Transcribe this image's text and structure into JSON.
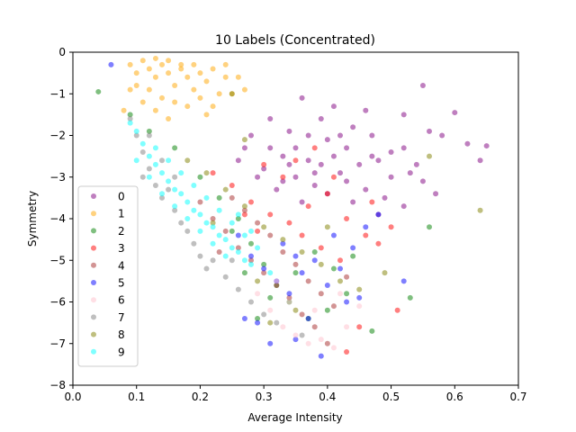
{
  "chart_data": {
    "type": "scatter",
    "title": "10 Labels (Concentrated)",
    "xlabel": "Average Intensity",
    "ylabel": "Symmetry",
    "xlim": [
      0.0,
      0.7
    ],
    "ylim": [
      -8,
      0
    ],
    "xticks": [
      0.0,
      0.1,
      0.2,
      0.3,
      0.4,
      0.5,
      0.6,
      0.7
    ],
    "xtick_labels": [
      "0.0",
      "0.1",
      "0.2",
      "0.3",
      "0.4",
      "0.5",
      "0.6",
      "0.7"
    ],
    "yticks": [
      0,
      -1,
      -2,
      -3,
      -4,
      -5,
      -6,
      -7,
      -8
    ],
    "ytick_labels": [
      "0",
      "−1",
      "−2",
      "−3",
      "−4",
      "−5",
      "−6",
      "−7",
      "−8"
    ],
    "grid": false,
    "legend_position": "lower-left",
    "series": [
      {
        "name": "0",
        "color": "#800080",
        "points": [
          [
            0.36,
            -1.1
          ],
          [
            0.41,
            -1.3
          ],
          [
            0.46,
            -1.4
          ],
          [
            0.52,
            -1.5
          ],
          [
            0.55,
            -0.8
          ],
          [
            0.62,
            -2.2
          ],
          [
            0.65,
            -2.25
          ],
          [
            0.6,
            -1.45
          ],
          [
            0.56,
            -1.9
          ],
          [
            0.52,
            -2.3
          ],
          [
            0.48,
            -2.6
          ],
          [
            0.44,
            -1.8
          ],
          [
            0.4,
            -2.1
          ],
          [
            0.37,
            -2.6
          ],
          [
            0.34,
            -1.9
          ],
          [
            0.31,
            -2.3
          ],
          [
            0.28,
            -2.0
          ],
          [
            0.3,
            -2.8
          ],
          [
            0.33,
            -3.1
          ],
          [
            0.38,
            -3.2
          ],
          [
            0.42,
            -2.9
          ],
          [
            0.46,
            -3.3
          ],
          [
            0.5,
            -3.0
          ],
          [
            0.54,
            -2.7
          ],
          [
            0.57,
            -3.4
          ],
          [
            0.52,
            -3.7
          ],
          [
            0.48,
            -3.9
          ],
          [
            0.44,
            -3.6
          ],
          [
            0.4,
            -3.4
          ],
          [
            0.36,
            -3.6
          ],
          [
            0.32,
            -3.3
          ],
          [
            0.29,
            -3.0
          ],
          [
            0.26,
            -2.6
          ],
          [
            0.35,
            -2.3
          ],
          [
            0.39,
            -1.6
          ],
          [
            0.43,
            -2.3
          ],
          [
            0.47,
            -2.0
          ],
          [
            0.5,
            -2.4
          ],
          [
            0.45,
            -2.7
          ],
          [
            0.41,
            -2.5
          ],
          [
            0.37,
            -2.0
          ],
          [
            0.34,
            -2.7
          ],
          [
            0.31,
            -1.6
          ],
          [
            0.27,
            -2.3
          ],
          [
            0.58,
            -2.0
          ],
          [
            0.53,
            -2.9
          ],
          [
            0.49,
            -3.5
          ],
          [
            0.43,
            -3.1
          ],
          [
            0.39,
            -2.7
          ],
          [
            0.35,
            -3.0
          ],
          [
            0.64,
            -2.6
          ],
          [
            0.55,
            -3.1
          ],
          [
            0.47,
            -2.5
          ],
          [
            0.42,
            -2.0
          ],
          [
            0.38,
            -2.9
          ],
          [
            0.33,
            -2.5
          ]
        ]
      },
      {
        "name": "1",
        "color": "#ffa500",
        "points": [
          [
            0.09,
            -0.3
          ],
          [
            0.1,
            -0.5
          ],
          [
            0.11,
            -0.2
          ],
          [
            0.12,
            -0.4
          ],
          [
            0.13,
            -0.6
          ],
          [
            0.14,
            -0.3
          ],
          [
            0.15,
            -0.5
          ],
          [
            0.16,
            -0.8
          ],
          [
            0.17,
            -0.4
          ],
          [
            0.18,
            -0.6
          ],
          [
            0.19,
            -0.9
          ],
          [
            0.2,
            -0.5
          ],
          [
            0.21,
            -0.7
          ],
          [
            0.22,
            -0.4
          ],
          [
            0.23,
            -1.0
          ],
          [
            0.24,
            -0.6
          ],
          [
            0.12,
            -0.9
          ],
          [
            0.14,
            -1.1
          ],
          [
            0.1,
            -0.8
          ],
          [
            0.11,
            -1.2
          ],
          [
            0.13,
            -1.4
          ],
          [
            0.16,
            -1.2
          ],
          [
            0.18,
            -1.3
          ],
          [
            0.2,
            -1.1
          ],
          [
            0.22,
            -1.3
          ],
          [
            0.25,
            -1.0
          ],
          [
            0.27,
            -0.9
          ],
          [
            0.15,
            -0.2
          ],
          [
            0.17,
            -0.3
          ],
          [
            0.19,
            -0.3
          ],
          [
            0.13,
            -0.15
          ],
          [
            0.09,
            -0.9
          ],
          [
            0.08,
            -1.4
          ],
          [
            0.24,
            -0.3
          ],
          [
            0.26,
            -0.6
          ],
          [
            0.21,
            -1.5
          ],
          [
            0.15,
            -1.6
          ]
        ]
      },
      {
        "name": "2",
        "color": "#008000",
        "points": [
          [
            0.04,
            -0.95
          ],
          [
            0.09,
            -1.5
          ],
          [
            0.12,
            -1.9
          ],
          [
            0.16,
            -2.3
          ],
          [
            0.2,
            -3.0
          ],
          [
            0.23,
            -3.5
          ],
          [
            0.26,
            -4.0
          ],
          [
            0.28,
            -4.6
          ],
          [
            0.3,
            -5.1
          ],
          [
            0.32,
            -5.6
          ],
          [
            0.34,
            -6.0
          ],
          [
            0.37,
            -6.4
          ],
          [
            0.4,
            -6.2
          ],
          [
            0.43,
            -5.8
          ],
          [
            0.47,
            -6.7
          ],
          [
            0.53,
            -5.9
          ],
          [
            0.56,
            -4.2
          ],
          [
            0.29,
            -6.4
          ],
          [
            0.35,
            -5.3
          ],
          [
            0.38,
            -4.8
          ],
          [
            0.41,
            -5.2
          ],
          [
            0.31,
            -5.9
          ],
          [
            0.27,
            -5.3
          ],
          [
            0.44,
            -4.9
          ],
          [
            0.25,
            -4.3
          ]
        ]
      },
      {
        "name": "3",
        "color": "#ff0000",
        "points": [
          [
            0.22,
            -2.9
          ],
          [
            0.25,
            -3.2
          ],
          [
            0.28,
            -3.6
          ],
          [
            0.31,
            -3.9
          ],
          [
            0.34,
            -4.1
          ],
          [
            0.37,
            -3.7
          ],
          [
            0.4,
            -3.4
          ],
          [
            0.43,
            -4.0
          ],
          [
            0.46,
            -4.4
          ],
          [
            0.48,
            -4.6
          ],
          [
            0.45,
            -6.6
          ],
          [
            0.43,
            -7.2
          ],
          [
            0.51,
            -6.2
          ],
          [
            0.3,
            -2.7
          ],
          [
            0.33,
            -3.0
          ],
          [
            0.36,
            -4.4
          ],
          [
            0.39,
            -4.7
          ],
          [
            0.42,
            -5.0
          ],
          [
            0.27,
            -3.9
          ],
          [
            0.29,
            -4.3
          ],
          [
            0.35,
            -2.6
          ],
          [
            0.38,
            -2.3
          ],
          [
            0.41,
            -3.0
          ],
          [
            0.47,
            -3.6
          ],
          [
            0.5,
            -4.2
          ]
        ]
      },
      {
        "name": "4",
        "color": "#a52a2a",
        "points": [
          [
            0.2,
            -3.6
          ],
          [
            0.22,
            -4.0
          ],
          [
            0.24,
            -4.3
          ],
          [
            0.26,
            -4.7
          ],
          [
            0.28,
            -5.0
          ],
          [
            0.3,
            -5.3
          ],
          [
            0.32,
            -5.6
          ],
          [
            0.34,
            -5.9
          ],
          [
            0.36,
            -6.3
          ],
          [
            0.38,
            -6.6
          ],
          [
            0.4,
            -7.0
          ],
          [
            0.25,
            -3.5
          ],
          [
            0.27,
            -3.8
          ],
          [
            0.29,
            -4.1
          ],
          [
            0.31,
            -4.4
          ],
          [
            0.33,
            -4.8
          ],
          [
            0.35,
            -5.1
          ],
          [
            0.37,
            -5.5
          ],
          [
            0.39,
            -5.8
          ],
          [
            0.41,
            -6.1
          ],
          [
            0.23,
            -4.8
          ],
          [
            0.43,
            -5.4
          ]
        ]
      },
      {
        "name": "5",
        "color": "#0000ff",
        "points": [
          [
            0.06,
            -0.3
          ],
          [
            0.28,
            -4.9
          ],
          [
            0.3,
            -5.2
          ],
          [
            0.32,
            -5.5
          ],
          [
            0.34,
            -5.8
          ],
          [
            0.36,
            -5.3
          ],
          [
            0.38,
            -5.0
          ],
          [
            0.4,
            -5.6
          ],
          [
            0.42,
            -5.2
          ],
          [
            0.44,
            -4.7
          ],
          [
            0.46,
            -4.2
          ],
          [
            0.48,
            -3.9
          ],
          [
            0.37,
            -6.4
          ],
          [
            0.35,
            -6.9
          ],
          [
            0.31,
            -7.0
          ],
          [
            0.29,
            -6.5
          ],
          [
            0.27,
            -6.4
          ],
          [
            0.39,
            -7.3
          ],
          [
            0.52,
            -5.5
          ],
          [
            0.45,
            -5.9
          ],
          [
            0.33,
            -4.6
          ],
          [
            0.41,
            -4.4
          ],
          [
            0.26,
            -4.4
          ],
          [
            0.35,
            -4.9
          ],
          [
            0.43,
            -6.0
          ]
        ]
      },
      {
        "name": "6",
        "color": "#ffc0cb",
        "points": [
          [
            0.29,
            -5.8
          ],
          [
            0.31,
            -6.2
          ],
          [
            0.33,
            -6.6
          ],
          [
            0.35,
            -6.8
          ],
          [
            0.37,
            -7.0
          ],
          [
            0.39,
            -6.9
          ],
          [
            0.41,
            -7.1
          ],
          [
            0.43,
            -6.6
          ],
          [
            0.45,
            -6.1
          ],
          [
            0.38,
            -6.2
          ],
          [
            0.34,
            -6.0
          ],
          [
            0.32,
            -5.5
          ],
          [
            0.42,
            -5.8
          ]
        ]
      },
      {
        "name": "7",
        "color": "#808080",
        "points": [
          [
            0.09,
            -1.6
          ],
          [
            0.1,
            -2.0
          ],
          [
            0.11,
            -2.4
          ],
          [
            0.12,
            -2.8
          ],
          [
            0.13,
            -3.2
          ],
          [
            0.14,
            -3.5
          ],
          [
            0.15,
            -3.3
          ],
          [
            0.16,
            -3.8
          ],
          [
            0.17,
            -4.1
          ],
          [
            0.18,
            -4.3
          ],
          [
            0.19,
            -4.6
          ],
          [
            0.2,
            -4.9
          ],
          [
            0.21,
            -5.2
          ],
          [
            0.22,
            -5.0
          ],
          [
            0.24,
            -5.4
          ],
          [
            0.26,
            -5.7
          ],
          [
            0.28,
            -6.0
          ],
          [
            0.3,
            -6.3
          ],
          [
            0.32,
            -6.5
          ],
          [
            0.12,
            -2.0
          ],
          [
            0.14,
            -2.6
          ],
          [
            0.11,
            -3.0
          ],
          [
            0.16,
            -3.0
          ],
          [
            0.25,
            -5.0
          ],
          [
            0.36,
            -6.8
          ]
        ]
      },
      {
        "name": "8",
        "color": "#808000",
        "points": [
          [
            0.18,
            -2.6
          ],
          [
            0.21,
            -2.9
          ],
          [
            0.24,
            -3.3
          ],
          [
            0.27,
            -3.7
          ],
          [
            0.3,
            -4.2
          ],
          [
            0.33,
            -4.5
          ],
          [
            0.36,
            -4.8
          ],
          [
            0.39,
            -5.1
          ],
          [
            0.42,
            -5.5
          ],
          [
            0.45,
            -5.7
          ],
          [
            0.25,
            -1.0
          ],
          [
            0.27,
            -2.1
          ],
          [
            0.31,
            -6.5
          ],
          [
            0.35,
            -6.2
          ],
          [
            0.64,
            -3.8
          ],
          [
            0.56,
            -2.5
          ],
          [
            0.49,
            -5.3
          ],
          [
            0.4,
            -4.2
          ],
          [
            0.29,
            -5.5
          ],
          [
            0.22,
            -4.1
          ]
        ]
      },
      {
        "name": "9",
        "color": "#00ffff",
        "points": [
          [
            0.09,
            -1.7
          ],
          [
            0.1,
            -1.9
          ],
          [
            0.11,
            -2.2
          ],
          [
            0.12,
            -2.5
          ],
          [
            0.13,
            -2.7
          ],
          [
            0.14,
            -2.9
          ],
          [
            0.15,
            -3.1
          ],
          [
            0.16,
            -3.3
          ],
          [
            0.17,
            -3.4
          ],
          [
            0.18,
            -3.6
          ],
          [
            0.19,
            -3.8
          ],
          [
            0.2,
            -3.9
          ],
          [
            0.21,
            -4.1
          ],
          [
            0.22,
            -4.2
          ],
          [
            0.23,
            -4.4
          ],
          [
            0.24,
            -4.5
          ],
          [
            0.25,
            -4.7
          ],
          [
            0.26,
            -4.8
          ],
          [
            0.27,
            -5.0
          ],
          [
            0.28,
            -5.1
          ],
          [
            0.13,
            -2.3
          ],
          [
            0.15,
            -2.6
          ],
          [
            0.17,
            -2.9
          ],
          [
            0.19,
            -3.2
          ],
          [
            0.21,
            -3.5
          ],
          [
            0.23,
            -3.8
          ],
          [
            0.25,
            -4.1
          ],
          [
            0.27,
            -4.4
          ],
          [
            0.29,
            -4.7
          ],
          [
            0.14,
            -3.4
          ],
          [
            0.16,
            -3.7
          ],
          [
            0.18,
            -4.0
          ],
          [
            0.2,
            -4.3
          ],
          [
            0.22,
            -4.6
          ],
          [
            0.24,
            -4.9
          ],
          [
            0.12,
            -3.0
          ],
          [
            0.1,
            -2.6
          ],
          [
            0.31,
            -5.3
          ],
          [
            0.26,
            -3.9
          ],
          [
            0.28,
            -4.3
          ]
        ]
      }
    ]
  }
}
